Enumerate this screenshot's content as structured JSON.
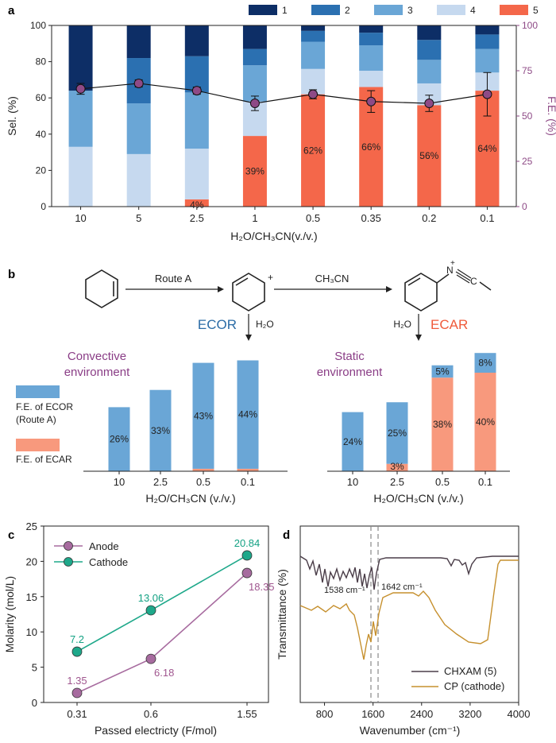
{
  "panel_labels": {
    "a": "a",
    "b": "b",
    "c": "c",
    "d": "d"
  },
  "chart_data": [
    {
      "type": "bar",
      "panel": "a",
      "categories": [
        "10",
        "5",
        "2.5",
        "1",
        "0.5",
        "0.35",
        "0.2",
        "0.1"
      ],
      "xlabel": "H₂O/CH₃CN(v./v.)",
      "ylabel": "Sel. (%)",
      "y2label": "F.E. (%)",
      "ylim": [
        0,
        100
      ],
      "y2lim": [
        0,
        100
      ],
      "yticks": [
        "0",
        "20",
        "40",
        "60",
        "80",
        "100"
      ],
      "y2ticks": [
        "0",
        "25",
        "50",
        "75",
        "100"
      ],
      "legend_position": "top",
      "series": [
        {
          "name": "5",
          "color": "#f4674a",
          "values": [
            0,
            0,
            4,
            39,
            62,
            66,
            56,
            64
          ]
        },
        {
          "name": "4",
          "color": "#c6d9ef",
          "values": [
            33,
            29,
            28,
            19,
            14,
            9,
            12,
            10
          ]
        },
        {
          "name": "3",
          "color": "#6aa6d6",
          "values": [
            31,
            28,
            31,
            20,
            15,
            14,
            13,
            13
          ]
        },
        {
          "name": "2",
          "color": "#2b70b1",
          "values": [
            0,
            25,
            20,
            9,
            6,
            7,
            11,
            8
          ]
        },
        {
          "name": "1",
          "color": "#0d2e66",
          "values": [
            36,
            18,
            17,
            13,
            3,
            4,
            8,
            5
          ]
        }
      ],
      "labels_series5": [
        "",
        "",
        "4%",
        "39%",
        "62%",
        "66%",
        "56%",
        "64%"
      ],
      "fe_line": {
        "color": "#8e4a86",
        "values": [
          65,
          68,
          64,
          57,
          62,
          58,
          57,
          62
        ],
        "errors": [
          3,
          2,
          2,
          4,
          2.5,
          6,
          4.5,
          12
        ]
      }
    },
    {
      "type": "bar",
      "panel": "b-left",
      "title": "Convective environment",
      "categories": [
        "10",
        "2.5",
        "0.5",
        "0.1"
      ],
      "xlabel": "H₂O/CH₃CN (v./v.)",
      "ylim": [
        0,
        50
      ],
      "series": [
        {
          "name": "F.E. of ECAR",
          "color": "#f8997d",
          "values": [
            0,
            0,
            1,
            1
          ]
        },
        {
          "name": "F.E. of ECOR (Route A)",
          "color": "#6aa6d6",
          "values": [
            26,
            33,
            43,
            44
          ]
        }
      ],
      "labels": [
        "26%",
        "33%",
        "43%",
        "44%"
      ]
    },
    {
      "type": "bar",
      "panel": "b-right",
      "title": "Static environment",
      "categories": [
        "10",
        "2.5",
        "0.5",
        "0.1"
      ],
      "xlabel": "H₂O/CH₃CN (v./v.)",
      "ylim": [
        0,
        50
      ],
      "series": [
        {
          "name": "F.E. of ECAR",
          "color": "#f8997d",
          "values": [
            0,
            3,
            38,
            40
          ]
        },
        {
          "name": "F.E. of ECOR (Route A)",
          "color": "#6aa6d6",
          "values": [
            24,
            25,
            5,
            8
          ]
        }
      ],
      "labels_ecar": [
        "",
        "3%",
        "38%",
        "40%"
      ],
      "labels_ecor": [
        "24%",
        "25%",
        "5%",
        "8%"
      ]
    },
    {
      "type": "line",
      "panel": "c",
      "categories": [
        "0.31",
        "0.6",
        "1.55"
      ],
      "xlabel": "Passed electricty (F/mol)",
      "ylabel": "Molarity (mol/L)",
      "ylim": [
        0,
        25
      ],
      "yticks": [
        "0",
        "5",
        "10",
        "15",
        "20",
        "25"
      ],
      "legend_position": "top-left",
      "series": [
        {
          "name": "Anode",
          "color": "#a76b9f",
          "label_color": "#a0578f",
          "values": [
            1.35,
            6.18,
            18.35
          ],
          "labels": [
            "1.35",
            "6.18",
            "18.35"
          ]
        },
        {
          "name": "Cathode",
          "color": "#1ea88a",
          "label_color": "#13a183",
          "values": [
            7.2,
            13.06,
            20.84
          ],
          "labels": [
            "7.2",
            "13.06",
            "20.84"
          ]
        }
      ]
    },
    {
      "type": "line",
      "panel": "d",
      "xlabel": "Wavenumber (cm⁻¹)",
      "ylabel": "Transmittance (%)",
      "xlim": [
        400,
        4000
      ],
      "xticks": [
        "800",
        "1600",
        "2400",
        "3200",
        "4000"
      ],
      "legend_position": "bottom-right",
      "annotations": [
        "1538 cm⁻¹",
        "1642 cm⁻¹"
      ],
      "series": [
        {
          "name": "CHXAM (5)",
          "color": "#4a3d48"
        },
        {
          "name": "CP (cathode)",
          "color": "#c6902e"
        }
      ]
    }
  ],
  "scheme": {
    "route_a": "Route A",
    "ch3cn": "CH₃CN",
    "h2o_left": "H₂O",
    "h2o_right": "H₂O",
    "ecor": "ECOR",
    "ecar": "ECAR",
    "ecor_color": "#2b6ca6",
    "ecar_color": "#ef5a3a",
    "env_color": "#8a3d86"
  }
}
